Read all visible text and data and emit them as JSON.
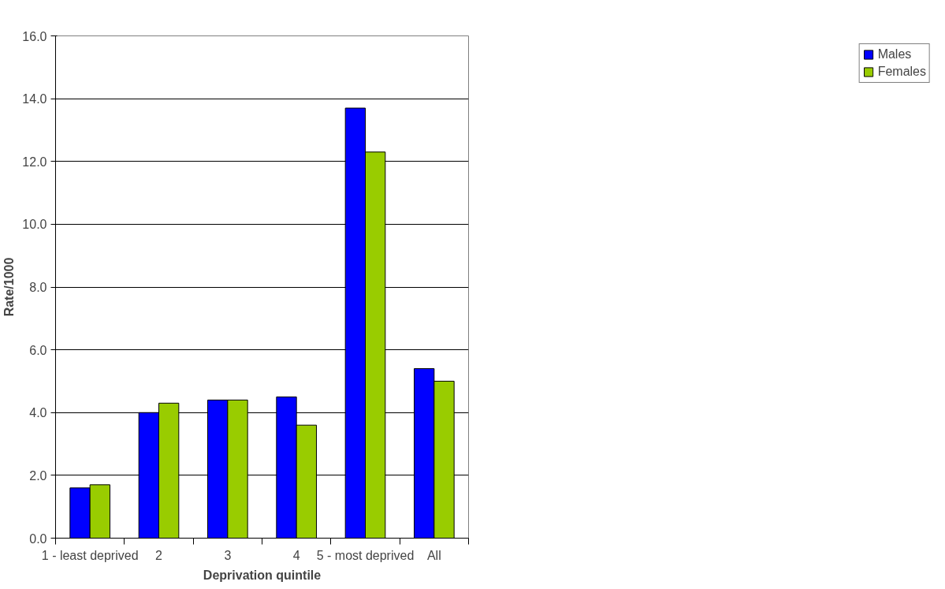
{
  "chart_data": {
    "type": "bar",
    "xlabel": "Deprivation quintile",
    "ylabel": "Rate/1000",
    "categories": [
      "1 - least deprived",
      "2",
      "3",
      "4",
      "5 - most deprived",
      "All"
    ],
    "series": [
      {
        "name": "Males",
        "color": "#0000ff",
        "values": [
          1.6,
          4.0,
          4.4,
          4.5,
          13.7,
          5.4
        ]
      },
      {
        "name": "Females",
        "color": "#99cc00",
        "values": [
          1.7,
          4.3,
          4.4,
          3.6,
          12.3,
          5.0
        ]
      }
    ],
    "ylim": [
      0,
      16
    ],
    "yticks": [
      {
        "value": 0,
        "label": "0.0"
      },
      {
        "value": 2,
        "label": "2.0"
      },
      {
        "value": 4,
        "label": "4.0"
      },
      {
        "value": 6,
        "label": "6.0"
      },
      {
        "value": 8,
        "label": "8.0"
      },
      {
        "value": 10,
        "label": "10.0"
      },
      {
        "value": 12,
        "label": "12.0"
      },
      {
        "value": 14,
        "label": "14.0"
      },
      {
        "value": 16,
        "label": "16.0"
      }
    ],
    "grid": "y",
    "legend": "right"
  }
}
